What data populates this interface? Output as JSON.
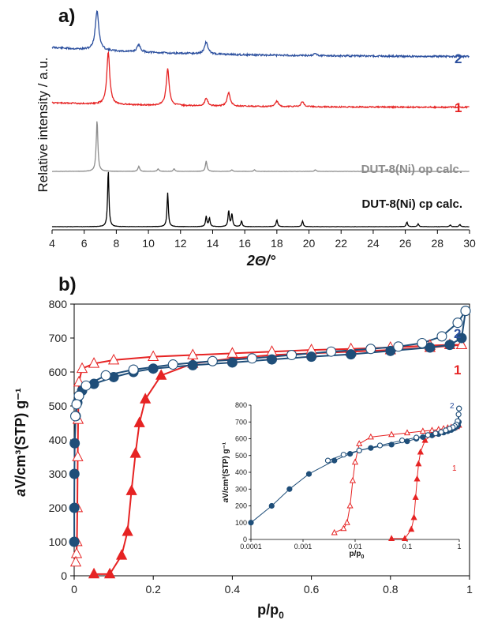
{
  "chart_data": [
    {
      "panel": "a)",
      "type": "line",
      "xlabel": "2Θ/°",
      "ylabel": "Relative intensity / a.u.",
      "xlim": [
        4,
        30
      ],
      "xticks": [
        "4",
        "6",
        "8",
        "10",
        "12",
        "14",
        "16",
        "18",
        "20",
        "22",
        "24",
        "26",
        "28",
        "30"
      ],
      "grid": false,
      "series": [
        {
          "name": "2",
          "color": "#2b4f9e",
          "peaks": [
            [
              6.8,
              1.0
            ],
            [
              9.4,
              0.18
            ],
            [
              13.6,
              0.3
            ],
            [
              20.4,
              0.05
            ]
          ]
        },
        {
          "name": "1",
          "color": "#e62323",
          "peaks": [
            [
              7.5,
              1.0
            ],
            [
              11.2,
              0.7
            ],
            [
              13.6,
              0.15
            ],
            [
              15.0,
              0.27
            ],
            [
              18.0,
              0.1
            ],
            [
              19.6,
              0.1
            ]
          ]
        },
        {
          "name": "DUT-8(Ni) op calc.",
          "color": "#8c8c8c",
          "peaks": [
            [
              6.8,
              1.0
            ],
            [
              9.4,
              0.1
            ],
            [
              10.6,
              0.05
            ],
            [
              11.6,
              0.05
            ],
            [
              13.6,
              0.2
            ],
            [
              15.2,
              0.03
            ],
            [
              16.6,
              0.03
            ],
            [
              20.4,
              0.03
            ]
          ]
        },
        {
          "name": "DUT-8(Ni) cp calc.",
          "color": "#000000",
          "peaks": [
            [
              7.5,
              1.0
            ],
            [
              11.2,
              0.6
            ],
            [
              13.6,
              0.18
            ],
            [
              13.8,
              0.15
            ],
            [
              15.0,
              0.28
            ],
            [
              15.2,
              0.22
            ],
            [
              15.8,
              0.1
            ],
            [
              18.0,
              0.12
            ],
            [
              19.6,
              0.1
            ],
            [
              26.1,
              0.08
            ],
            [
              26.8,
              0.05
            ],
            [
              28.8,
              0.03
            ],
            [
              29.4,
              0.04
            ]
          ]
        }
      ]
    },
    {
      "panel": "b)",
      "type": "scatter",
      "xlabel": "p/p",
      "xlabel_sub": "0",
      "ylabel": "V/cm³(STP) g⁻¹",
      "ylabel_sub": "a",
      "xlim": [
        0,
        1
      ],
      "ylim": [
        0,
        800
      ],
      "xticks": [
        "0",
        "0.2",
        "0.4",
        "0.6",
        "0.8",
        "1"
      ],
      "yticks": [
        "0",
        "100",
        "200",
        "300",
        "400",
        "500",
        "600",
        "700",
        "800"
      ],
      "grid": false,
      "series": [
        {
          "name": "1",
          "color": "#e62323",
          "adsorption": [
            [
              0.05,
              5
            ],
            [
              0.09,
              5
            ],
            [
              0.12,
              60
            ],
            [
              0.135,
              130
            ],
            [
              0.145,
              250
            ],
            [
              0.155,
              360
            ],
            [
              0.165,
              450
            ],
            [
              0.18,
              520
            ],
            [
              0.22,
              590
            ],
            [
              0.3,
              625
            ],
            [
              0.4,
              640
            ],
            [
              0.5,
              650
            ],
            [
              0.6,
              655
            ],
            [
              0.7,
              660
            ],
            [
              0.8,
              665
            ],
            [
              0.9,
              672
            ],
            [
              0.98,
              680
            ]
          ],
          "desorption": [
            [
              0.98,
              680
            ],
            [
              0.95,
              680
            ],
            [
              0.9,
              678
            ],
            [
              0.8,
              672
            ],
            [
              0.7,
              668
            ],
            [
              0.6,
              665
            ],
            [
              0.5,
              660
            ],
            [
              0.4,
              655
            ],
            [
              0.3,
              650
            ],
            [
              0.2,
              645
            ],
            [
              0.1,
              635
            ],
            [
              0.05,
              625
            ],
            [
              0.02,
              610
            ],
            [
              0.012,
              570
            ],
            [
              0.01,
              460
            ],
            [
              0.009,
              350
            ],
            [
              0.008,
              200
            ],
            [
              0.007,
              100
            ],
            [
              0.006,
              65
            ],
            [
              0.004,
              40
            ]
          ]
        },
        {
          "name": "2",
          "color": "#1f4e79",
          "adsorption": [
            [
              0.0001,
              100
            ],
            [
              0.00025,
              200
            ],
            [
              0.00055,
              300
            ],
            [
              0.0013,
              390
            ],
            [
              0.004,
              470
            ],
            [
              0.008,
              510
            ],
            [
              0.012,
              530
            ],
            [
              0.02,
              545
            ],
            [
              0.05,
              565
            ],
            [
              0.1,
              585
            ],
            [
              0.15,
              600
            ],
            [
              0.2,
              610
            ],
            [
              0.3,
              620
            ],
            [
              0.4,
              628
            ],
            [
              0.5,
              637
            ],
            [
              0.6,
              645
            ],
            [
              0.7,
              652
            ],
            [
              0.8,
              662
            ],
            [
              0.9,
              672
            ],
            [
              0.95,
              680
            ],
            [
              0.98,
              700
            ],
            [
              0.99,
              780
            ]
          ],
          "desorption": [
            [
              0.99,
              780
            ],
            [
              0.97,
              745
            ],
            [
              0.93,
              705
            ],
            [
              0.88,
              685
            ],
            [
              0.82,
              675
            ],
            [
              0.75,
              668
            ],
            [
              0.65,
              660
            ],
            [
              0.55,
              650
            ],
            [
              0.45,
              640
            ],
            [
              0.35,
              632
            ],
            [
              0.25,
              622
            ],
            [
              0.15,
              607
            ],
            [
              0.08,
              590
            ],
            [
              0.03,
              560
            ],
            [
              0.012,
              530
            ],
            [
              0.006,
              505
            ],
            [
              0.003,
              470
            ]
          ]
        }
      ],
      "inset": {
        "xscale": "log",
        "xlim": [
          0.0001,
          1
        ],
        "ylim": [
          0,
          800
        ],
        "xticks": [
          "0.0001",
          "0.001",
          "0.01",
          "0.1",
          "1"
        ],
        "yticks": [
          "0",
          "100",
          "200",
          "300",
          "400",
          "500",
          "600",
          "700",
          "800"
        ],
        "xlabel": "p/p",
        "xlabel_sub": "0",
        "ylabel": "V/cm³(STP) g⁻¹",
        "ylabel_sub": "a",
        "series_labels": [
          "2",
          "1"
        ]
      }
    }
  ]
}
